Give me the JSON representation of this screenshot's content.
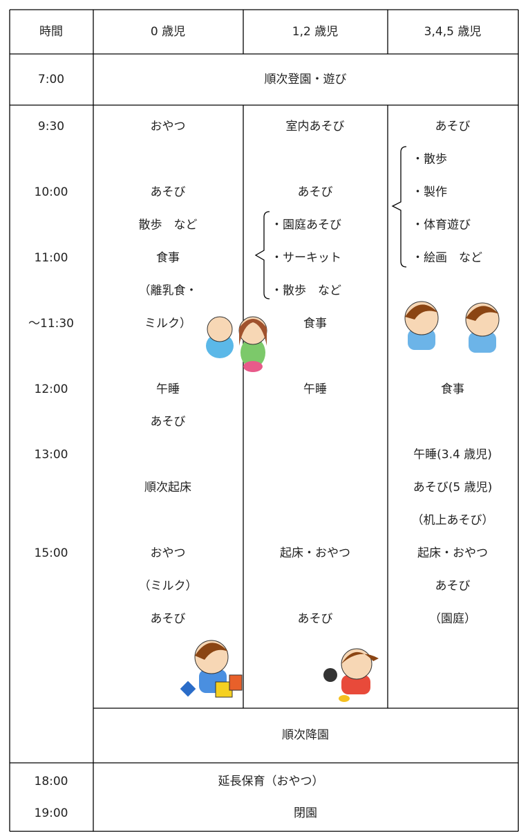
{
  "header": [
    "時間",
    "0 歳児",
    "1,2 歳児",
    "3,4,5 歳児"
  ],
  "arrival": {
    "time": "7:00",
    "text": "順次登園・遊び"
  },
  "schedule": {
    "times": [
      "9:30",
      null,
      "10:00",
      null,
      "11:00",
      null,
      "～11:30",
      null,
      "12:00",
      null,
      "13:00",
      null,
      null,
      "15:00",
      null,
      null
    ],
    "age0": [
      "おやつ",
      null,
      "あそび",
      "散歩　など",
      "食事",
      "（離乳食・",
      "ミルク）",
      null,
      "午睡",
      "あそび",
      null,
      "順次起床",
      null,
      "おやつ",
      "（ミルク）",
      "あそび"
    ],
    "age12": [
      "室内あそび",
      null,
      "あそび",
      "・園庭あそび",
      "・サーキット",
      "・散歩　など",
      "食事",
      null,
      "午睡",
      null,
      null,
      null,
      null,
      "起床・おやつ",
      null,
      "あそび"
    ],
    "age345": [
      "あそび",
      "・散歩",
      "・製作",
      "・体育遊び",
      "・絵画　など",
      null,
      null,
      null,
      "食事",
      null,
      "午睡(3.4 歳児)",
      "あそび(5 歳児)",
      "（机上あそび）",
      "起床・おやつ",
      "あそび",
      "（園庭）"
    ]
  },
  "departure": "順次降園",
  "extended": [
    {
      "time": "18:00",
      "text": "延長保育（おやつ）"
    },
    {
      "time": "19:00",
      "text": "閉園"
    }
  ]
}
